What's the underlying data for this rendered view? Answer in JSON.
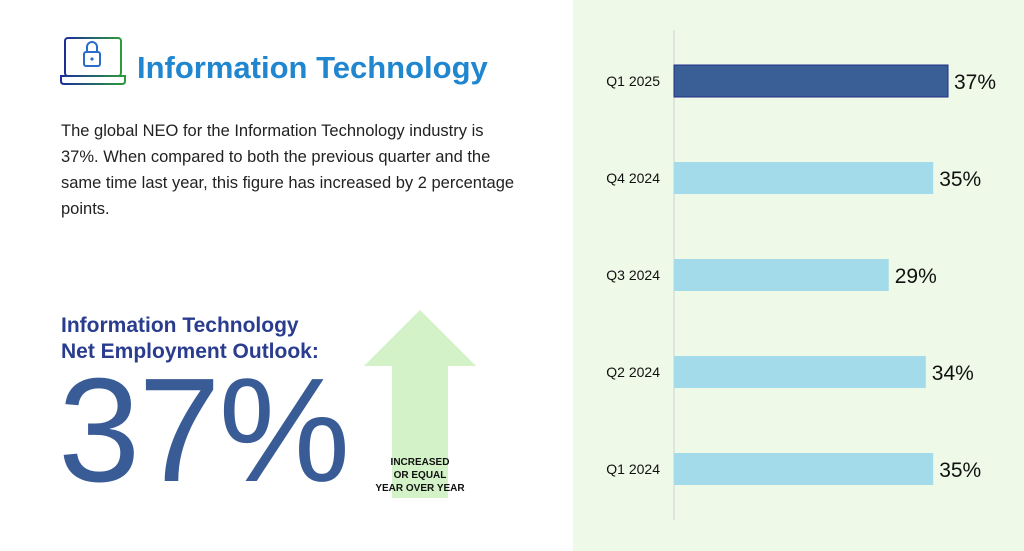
{
  "header": {
    "title": "Information Technology",
    "icon": "laptop-lock-icon"
  },
  "description": "The global NEO for the Information Technology industry is 37%. When compared to both the previous quarter and the same time last year, this figure has increased by 2 percentage points.",
  "outlook": {
    "label_line1": "Information Technology",
    "label_line2": "Net Employment Outlook:",
    "value": "37%",
    "trend_icon": "up-arrow-icon",
    "trend_line1": "INCREASED",
    "trend_line2": "OR EQUAL",
    "trend_line3": "YEAR OVER YEAR"
  },
  "colors": {
    "highlight": "#3a5f96",
    "bar": "#a3dbea",
    "panel": "#eff9e8",
    "title": "#1f86cf"
  },
  "chart_data": {
    "type": "bar",
    "orientation": "horizontal",
    "categories": [
      "Q1 2025",
      "Q4 2024",
      "Q3 2024",
      "Q2 2024",
      "Q1 2024"
    ],
    "values": [
      37,
      35,
      29,
      34,
      35
    ],
    "labels": [
      "37%",
      "35%",
      "29%",
      "34%",
      "35%"
    ],
    "highlight_index": 0,
    "xlim": [
      0,
      37
    ],
    "grid": false
  }
}
